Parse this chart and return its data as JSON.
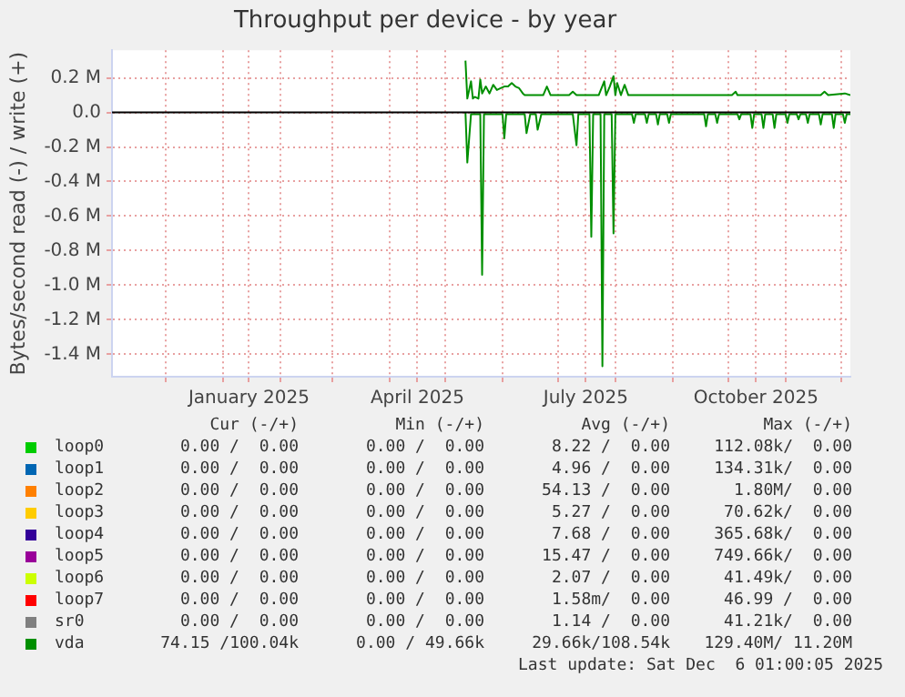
{
  "chart_data": {
    "type": "line",
    "title": "Throughput per device - by year",
    "ylabel": "Bytes/second read (-) / write (+)",
    "xlim": [
      "2024-11-02",
      "2025-12-06"
    ],
    "xticks": [
      {
        "value": "2024-12-01",
        "label": null
      },
      {
        "value": "2025-01-01",
        "label": null
      },
      {
        "value": "2025-01-15",
        "label": "January 2025"
      },
      {
        "value": "2025-02-01",
        "label": null
      },
      {
        "value": "2025-03-01",
        "label": null
      },
      {
        "value": "2025-04-01",
        "label": null
      },
      {
        "value": "2025-04-16",
        "label": "April 2025"
      },
      {
        "value": "2025-05-01",
        "label": null
      },
      {
        "value": "2025-06-01",
        "label": null
      },
      {
        "value": "2025-07-01",
        "label": null
      },
      {
        "value": "2025-07-16",
        "label": "July 2025"
      },
      {
        "value": "2025-08-01",
        "label": null
      },
      {
        "value": "2025-09-01",
        "label": null
      },
      {
        "value": "2025-10-01",
        "label": null
      },
      {
        "value": "2025-10-16",
        "label": "October 2025"
      },
      {
        "value": "2025-11-01",
        "label": null
      },
      {
        "value": "2025-12-01",
        "label": null
      }
    ],
    "ylim": [
      -1530000,
      360000
    ],
    "yticks": [
      {
        "value": 200000,
        "label": "0.2 M"
      },
      {
        "value": 0,
        "label": "0.0"
      },
      {
        "value": -200000,
        "label": "-0.2 M"
      },
      {
        "value": -400000,
        "label": "-0.4 M"
      },
      {
        "value": -600000,
        "label": "-0.6 M"
      },
      {
        "value": -800000,
        "label": "-0.8 M"
      },
      {
        "value": -1000000,
        "label": "-1.0 M"
      },
      {
        "value": -1200000,
        "label": "-1.2 M"
      },
      {
        "value": -1400000,
        "label": "-1.4 M"
      }
    ],
    "grid": true,
    "legend": "bottom",
    "marker": "none",
    "line_style": "solid",
    "ref_lines": [
      {
        "axis": "y",
        "value": 0,
        "color": "#000000"
      }
    ],
    "series": [
      {
        "name": "loop0",
        "color": "#00cc00"
      },
      {
        "name": "loop1",
        "color": "#0066b3"
      },
      {
        "name": "loop2",
        "color": "#ff8000"
      },
      {
        "name": "loop3",
        "color": "#ffcc00"
      },
      {
        "name": "loop4",
        "color": "#330099"
      },
      {
        "name": "loop5",
        "color": "#990099"
      },
      {
        "name": "loop6",
        "color": "#ccff00"
      },
      {
        "name": "loop7",
        "color": "#ff0000"
      },
      {
        "name": "sr0",
        "color": "#808080"
      },
      {
        "name": "vda",
        "color": "#008f00",
        "x": [
          "2025-05-12",
          "2025-05-13",
          "2025-05-15",
          "2025-05-16",
          "2025-05-17",
          "2025-05-19",
          "2025-05-20",
          "2025-05-21",
          "2025-05-23",
          "2025-05-25",
          "2025-05-27",
          "2025-05-29",
          "2025-05-31",
          "2025-06-02",
          "2025-06-04",
          "2025-06-06",
          "2025-06-08",
          "2025-06-10",
          "2025-06-12",
          "2025-06-13",
          "2025-06-23",
          "2025-06-25",
          "2025-06-27",
          "2025-07-07",
          "2025-07-09",
          "2025-07-11",
          "2025-07-23",
          "2025-07-26",
          "2025-07-27",
          "2025-07-29",
          "2025-07-31",
          "2025-08-01",
          "2025-08-02",
          "2025-08-04",
          "2025-08-06",
          "2025-08-08",
          "2025-10-03",
          "2025-10-05",
          "2025-10-06",
          "2025-11-20",
          "2025-11-22",
          "2025-11-24",
          "2025-12-03",
          "2025-12-06"
        ],
        "values": [
          300000,
          80000,
          180000,
          80000,
          90000,
          80000,
          190000,
          110000,
          150000,
          110000,
          160000,
          130000,
          140000,
          150000,
          150000,
          170000,
          150000,
          140000,
          110000,
          100000,
          100000,
          150000,
          100000,
          100000,
          120000,
          100000,
          100000,
          180000,
          100000,
          150000,
          210000,
          100000,
          170000,
          100000,
          160000,
          100000,
          100000,
          120000,
          100000,
          100000,
          120000,
          100000,
          110000,
          100000
        ]
      },
      {
        "color": "#008f00",
        "x": [
          "2025-05-12",
          "2025-05-13",
          "2025-05-15",
          "2025-05-20",
          "2025-05-21",
          "2025-05-22",
          "2025-06-01",
          "2025-06-02",
          "2025-06-03",
          "2025-06-13",
          "2025-06-14",
          "2025-06-16",
          "2025-06-19",
          "2025-06-20",
          "2025-06-22",
          "2025-07-09",
          "2025-07-11",
          "2025-07-12",
          "2025-07-18",
          "2025-07-19",
          "2025-07-20",
          "2025-07-24",
          "2025-07-25",
          "2025-07-26",
          "2025-07-30",
          "2025-07-31",
          "2025-08-01",
          "2025-08-10",
          "2025-08-11",
          "2025-08-12",
          "2025-08-17",
          "2025-08-18",
          "2025-08-19",
          "2025-08-23",
          "2025-08-24",
          "2025-08-25",
          "2025-08-29",
          "2025-08-30",
          "2025-08-31",
          "2025-09-18",
          "2025-09-19",
          "2025-09-20",
          "2025-09-24",
          "2025-09-25",
          "2025-09-26",
          "2025-10-06",
          "2025-10-07",
          "2025-10-08",
          "2025-10-13",
          "2025-10-14",
          "2025-10-15",
          "2025-10-19",
          "2025-10-20",
          "2025-10-21",
          "2025-10-25",
          "2025-10-26",
          "2025-10-27",
          "2025-11-01",
          "2025-11-02",
          "2025-11-03",
          "2025-11-07",
          "2025-11-08",
          "2025-11-09",
          "2025-11-12",
          "2025-11-13",
          "2025-11-14",
          "2025-11-19",
          "2025-11-20",
          "2025-11-21",
          "2025-11-26",
          "2025-11-27",
          "2025-11-28",
          "2025-12-02",
          "2025-12-03",
          "2025-12-04",
          "2025-12-06"
        ],
        "values": [
          0,
          -290000,
          -10000,
          -10000,
          -940000,
          -10000,
          -10000,
          -150000,
          -10000,
          -10000,
          -120000,
          -10000,
          -10000,
          -100000,
          -10000,
          -10000,
          -190000,
          -10000,
          -10000,
          -720000,
          -10000,
          -10000,
          -1470000,
          -10000,
          -10000,
          -700000,
          -10000,
          -10000,
          -60000,
          -10000,
          -10000,
          -60000,
          -10000,
          -10000,
          -70000,
          -10000,
          -10000,
          -60000,
          -10000,
          -10000,
          -80000,
          -10000,
          -10000,
          -60000,
          -10000,
          -10000,
          -40000,
          -10000,
          -10000,
          -90000,
          -10000,
          -10000,
          -90000,
          -10000,
          -10000,
          -90000,
          -10000,
          -10000,
          -60000,
          -10000,
          -10000,
          -40000,
          -10000,
          -10000,
          -60000,
          -10000,
          -10000,
          -70000,
          -10000,
          -10000,
          -90000,
          -10000,
          -10000,
          -60000,
          -10000,
          -10000
        ]
      }
    ],
    "annotations": [
      "Cur (-/+)",
      "Min (-/+)",
      "Avg (-/+)",
      "Max (-/+)",
      "0.00 /  0.00",
      "0.00 /  0.00",
      "8.22 /  0.00",
      "112.08k/  0.00",
      "0.00 /  0.00",
      "0.00 /  0.00",
      "4.96 /  0.00",
      "134.31k/  0.00",
      "0.00 /  0.00",
      "0.00 /  0.00",
      "54.13 /  0.00",
      "1.80M/  0.00",
      "0.00 /  0.00",
      "0.00 /  0.00",
      "5.27 /  0.00",
      "70.62k/  0.00",
      "0.00 /  0.00",
      "0.00 /  0.00",
      "7.68 /  0.00",
      "365.68k/  0.00",
      "0.00 /  0.00",
      "0.00 /  0.00",
      "15.47 /  0.00",
      "749.66k/  0.00",
      "0.00 /  0.00",
      "0.00 /  0.00",
      "2.07 /  0.00",
      "41.49k/  0.00",
      "0.00 /  0.00",
      "0.00 /  0.00",
      "1.58m/  0.00",
      "46.99 /  0.00",
      "0.00 /  0.00",
      "0.00 /  0.00",
      "1.14 /  0.00",
      "41.21k/  0.00",
      "74.15 /100.04k",
      "0.00 / 49.66k",
      "29.66k/108.54k",
      "129.40M/ 11.20M",
      "Last update: Sat Dec  6 01:00:05 2025"
    ]
  }
}
